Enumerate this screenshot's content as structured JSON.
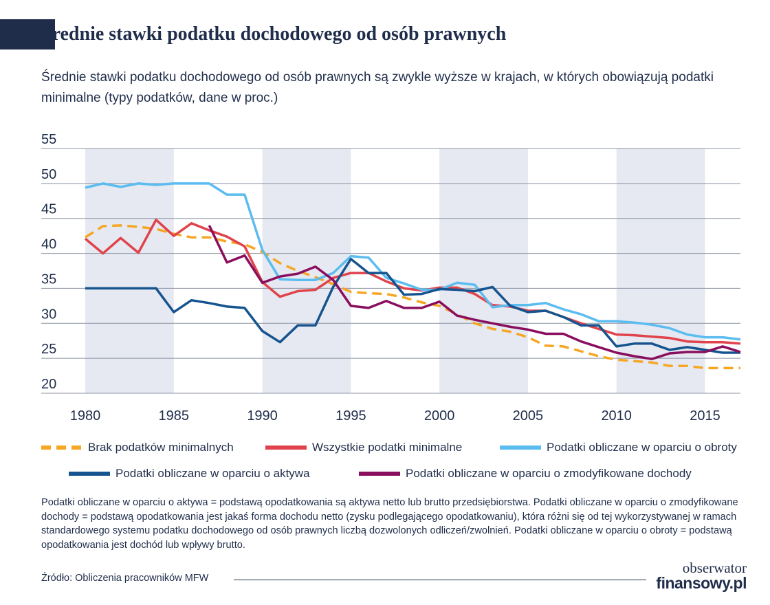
{
  "header": {
    "title": "Średnie stawki podatku dochodowego od osób prawnych",
    "subtitle": "Średnie stawki podatku dochodowego od osób prawnych są zwykle wyższe w krajach, w których obowiązują podatki minimalne (typy podatków, dane w proc.)"
  },
  "chart_data": {
    "type": "line",
    "title": "",
    "xlabel": "",
    "ylabel": "",
    "xlim": [
      1980,
      2017
    ],
    "ylim": [
      20,
      55
    ],
    "x_ticks": [
      1980,
      1985,
      1990,
      1995,
      2000,
      2005,
      2010,
      2015
    ],
    "y_ticks": [
      20,
      25,
      30,
      35,
      40,
      45,
      50,
      55
    ],
    "x_tick_labels": [
      "1980",
      "1985",
      "1990",
      "1995",
      "2000",
      "2005",
      "2010",
      "2015"
    ],
    "y_tick_labels": [
      "20",
      "25",
      "30",
      "35",
      "40",
      "45",
      "50",
      "55"
    ],
    "grid": "horizontal",
    "shaded_periods": [
      [
        1980,
        1985
      ],
      [
        1990,
        1995
      ],
      [
        2000,
        2005
      ],
      [
        2010,
        2015
      ]
    ],
    "legend_position": "bottom",
    "series": [
      {
        "name": "Brak podatków minimalnych",
        "color": "#f5a623",
        "style": "dashed",
        "x": [
          1980,
          1981,
          1982,
          1983,
          1984,
          1985,
          1986,
          1987,
          1988,
          1989,
          1990,
          1991,
          1992,
          1993,
          1994,
          1995,
          1996,
          1997,
          1998,
          1999,
          2000,
          2001,
          2002,
          2003,
          2004,
          2005,
          2006,
          2007,
          2008,
          2009,
          2010,
          2011,
          2012,
          2013,
          2014,
          2015,
          2016,
          2017
        ],
        "y": [
          42.3,
          43.9,
          44.0,
          43.8,
          43.5,
          42.8,
          42.3,
          42.3,
          41.7,
          41.3,
          40.2,
          38.6,
          37.5,
          36.6,
          35.6,
          34.5,
          34.3,
          34.2,
          33.7,
          33.0,
          32.5,
          31.3,
          30.0,
          29.2,
          28.8,
          28.0,
          26.8,
          26.7,
          26.0,
          25.3,
          24.8,
          24.6,
          24.4,
          23.9,
          23.9,
          23.6,
          23.6,
          23.6
        ]
      },
      {
        "name": "Wszystkie podatki minimalne",
        "color": "#e0434c",
        "style": "solid",
        "x": [
          1980,
          1981,
          1982,
          1983,
          1984,
          1985,
          1986,
          1987,
          1988,
          1989,
          1990,
          1991,
          1992,
          1993,
          1994,
          1995,
          1996,
          1997,
          1998,
          1999,
          2000,
          2001,
          2002,
          2003,
          2004,
          2005,
          2006,
          2007,
          2008,
          2009,
          2010,
          2011,
          2012,
          2013,
          2014,
          2015,
          2016,
          2017
        ],
        "y": [
          42.1,
          40.0,
          42.2,
          40.1,
          44.8,
          42.5,
          44.3,
          43.3,
          42.4,
          41.0,
          35.9,
          33.8,
          34.6,
          34.8,
          36.5,
          37.2,
          37.2,
          36.0,
          35.0,
          34.7,
          35.1,
          35.1,
          34.2,
          32.6,
          32.4,
          31.8,
          31.8,
          30.9,
          30.0,
          29.2,
          28.4,
          28.3,
          28.1,
          27.9,
          27.4,
          27.3,
          27.3,
          27.1
        ]
      },
      {
        "name": "Podatki obliczane w oparciu o obroty",
        "color": "#5bbcf0",
        "style": "solid",
        "x": [
          1980,
          1981,
          1982,
          1983,
          1984,
          1985,
          1986,
          1987,
          1988,
          1989,
          1990,
          1991,
          1992,
          1993,
          1994,
          1995,
          1996,
          1997,
          1998,
          1999,
          2000,
          2001,
          2002,
          2003,
          2004,
          2005,
          2006,
          2007,
          2008,
          2009,
          2010,
          2011,
          2012,
          2013,
          2014,
          2015,
          2016,
          2017
        ],
        "y": [
          49.4,
          50.0,
          49.5,
          50.0,
          49.8,
          50.0,
          50.0,
          50.0,
          48.4,
          48.4,
          40.5,
          36.3,
          36.2,
          36.2,
          37.2,
          39.6,
          39.4,
          36.5,
          35.7,
          34.8,
          34.8,
          35.8,
          35.5,
          32.3,
          32.6,
          32.6,
          32.9,
          32.0,
          31.3,
          30.3,
          30.3,
          30.1,
          29.8,
          29.3,
          28.4,
          28.0,
          28.0,
          27.7
        ]
      },
      {
        "name": "Podatki obliczane w oparciu o aktywa",
        "color": "#15548e",
        "style": "solid",
        "x": [
          1980,
          1981,
          1982,
          1983,
          1984,
          1985,
          1986,
          1987,
          1988,
          1989,
          1990,
          1991,
          1992,
          1993,
          1994,
          1995,
          1996,
          1997,
          1998,
          1999,
          2000,
          2001,
          2002,
          2003,
          2004,
          2005,
          2006,
          2007,
          2008,
          2009,
          2010,
          2011,
          2012,
          2013,
          2014,
          2015,
          2016,
          2017
        ],
        "y": [
          35.0,
          35.0,
          35.0,
          35.0,
          35.0,
          31.6,
          33.3,
          32.9,
          32.4,
          32.2,
          28.9,
          27.3,
          29.7,
          29.7,
          35.2,
          39.2,
          37.2,
          37.2,
          34.1,
          34.2,
          34.9,
          34.8,
          34.6,
          35.2,
          32.5,
          31.6,
          31.8,
          30.9,
          29.7,
          29.7,
          26.7,
          27.1,
          27.1,
          26.2,
          26.6,
          26.2,
          25.8,
          25.8
        ]
      },
      {
        "name": "Podatki obliczane w oparciu o zmodyfikowane dochody",
        "color": "#8a0e5e",
        "style": "solid",
        "x": [
          1987,
          1988,
          1989,
          1990,
          1991,
          1992,
          1993,
          1994,
          1995,
          1996,
          1997,
          1998,
          1999,
          2000,
          2001,
          2002,
          2003,
          2004,
          2005,
          2006,
          2007,
          2008,
          2009,
          2010,
          2011,
          2012,
          2013,
          2014,
          2015,
          2016,
          2017
        ],
        "y": [
          44.0,
          38.7,
          39.7,
          35.8,
          36.7,
          37.1,
          38.1,
          36.2,
          32.5,
          32.2,
          33.2,
          32.2,
          32.2,
          33.1,
          31.1,
          30.5,
          30.0,
          29.5,
          29.1,
          28.5,
          28.5,
          27.4,
          26.6,
          25.8,
          25.3,
          24.9,
          25.7,
          25.9,
          25.9,
          26.7,
          25.9
        ]
      }
    ]
  },
  "legend": {
    "items": [
      {
        "label": "Brak podatków minimalnych",
        "color": "#f5a623",
        "style": "dashed"
      },
      {
        "label": "Wszystkie podatki minimalne",
        "color": "#e0434c",
        "style": "solid"
      },
      {
        "label": "Podatki obliczane w oparciu o obroty",
        "color": "#5bbcf0",
        "style": "solid"
      },
      {
        "label": "Podatki obliczane w oparciu o aktywa",
        "color": "#15548e",
        "style": "solid"
      },
      {
        "label": "Podatki obliczane w oparciu o zmodyfikowane dochody",
        "color": "#8a0e5e",
        "style": "solid"
      }
    ]
  },
  "footnote": {
    "text": "Podatki obliczane w oparciu o aktywa = podstawą opodatkowania są aktywa netto lub brutto przedsiębiorstwa. Podatki obliczane w oparciu o zmodyfikowane dochody = podstawą opodatkowania jest jakaś forma dochodu netto (zysku podlegającego opodatkowaniu), która różni się od tej wykorzystywanej w ramach standardowego systemu podatku dochodowego od osób prawnych liczbą dozwolonych odliczeń/zwolnień. Podatki obliczane w oparciu o obroty = podstawą opodatkowania jest dochód lub wpływy brutto."
  },
  "source": {
    "text": "Źródło: Obliczenia pracowników MFW"
  },
  "logo": {
    "line1": "obserwator",
    "line2": "finansowy.pl"
  },
  "colors": {
    "navy": "#1f2d4a",
    "shade": "#e6e9f1",
    "grid": "#8c93a3"
  }
}
